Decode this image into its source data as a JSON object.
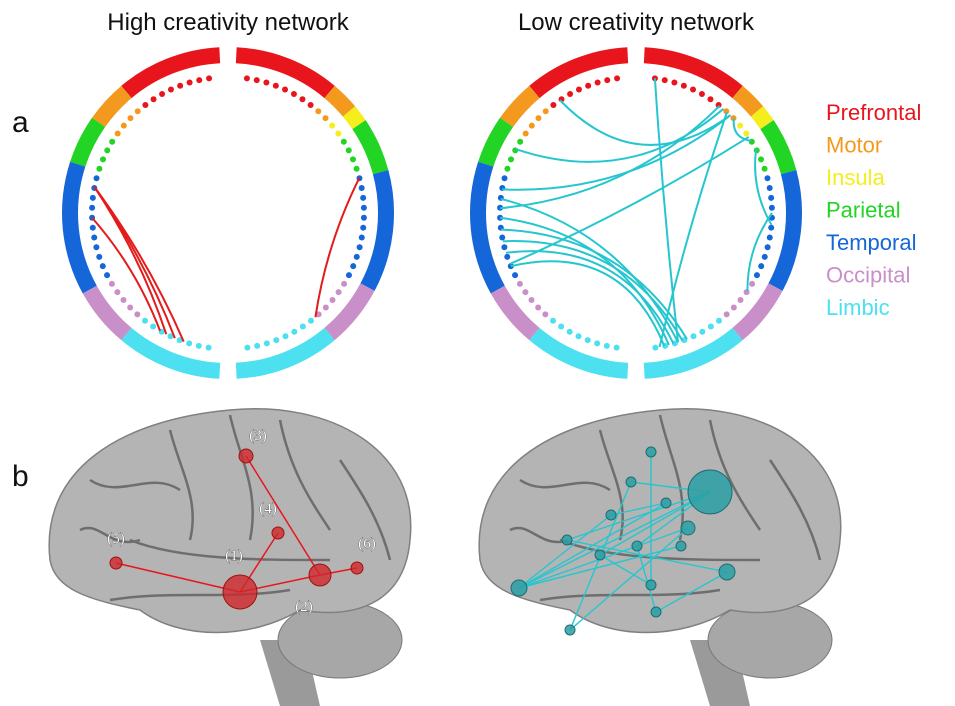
{
  "panels": [
    {
      "label": "a"
    },
    {
      "label": "b"
    }
  ],
  "networks": [
    {
      "title": "High creativity network"
    },
    {
      "title": "Low creativity network"
    }
  ],
  "legend": [
    {
      "name": "Prefrontal",
      "color": "#e8161c"
    },
    {
      "name": "Motor",
      "color": "#f39a1e"
    },
    {
      "name": "Insula",
      "color": "#f5ee1c"
    },
    {
      "name": "Parietal",
      "color": "#22d423"
    },
    {
      "name": "Temporal",
      "color": "#1566d9"
    },
    {
      "name": "Occipital",
      "color": "#c98fc9"
    },
    {
      "name": "Limbic",
      "color": "#4ce0f0"
    }
  ],
  "brain_nodes": [
    "(1)",
    "(2)",
    "(3)",
    "(4)",
    "(5)",
    "(6)"
  ]
}
